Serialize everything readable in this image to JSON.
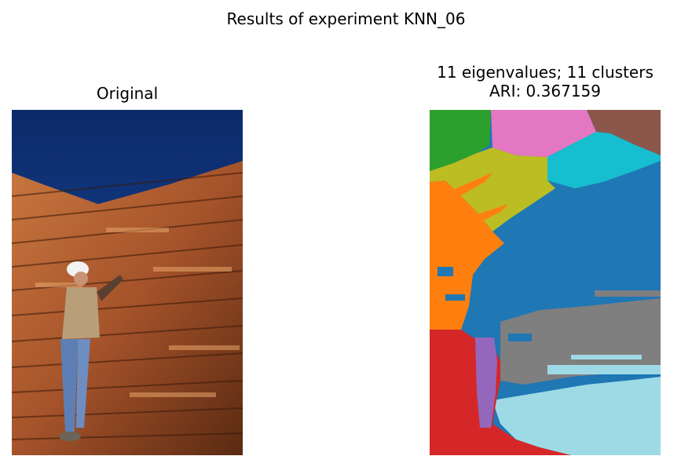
{
  "figure": {
    "suptitle": "Results of experiment KNN_06"
  },
  "left_panel": {
    "title": "Original",
    "image": "photo of worker in hard hat inspecting stacked lumber under blue sky"
  },
  "right_panel": {
    "title_line1": "11 eigenvalues; 11 clusters",
    "title_line2": "ARI: 0.367159"
  },
  "chart_data": {
    "type": "heatmap",
    "title": "11 eigenvalues; 11 clusters",
    "subtitle": "ARI: 0.367159",
    "n_eigenvalues": 11,
    "n_clusters": 11,
    "ari": 0.367159,
    "cluster_colors": [
      "#1f77b4",
      "#ff7f0e",
      "#2ca02c",
      "#d62728",
      "#9467bd",
      "#8c564b",
      "#e377c2",
      "#7f7f7f",
      "#bcbd22",
      "#17becf",
      "#9edae5"
    ]
  }
}
